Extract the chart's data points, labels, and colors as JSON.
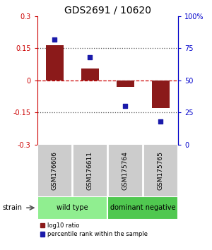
{
  "title": "GDS2691 / 10620",
  "samples": [
    "GSM176606",
    "GSM176611",
    "GSM175764",
    "GSM175765"
  ],
  "log10_ratio": [
    0.165,
    0.055,
    -0.03,
    -0.13
  ],
  "percentile_rank": [
    82,
    68,
    30,
    18
  ],
  "groups": [
    {
      "label": "wild type",
      "samples": [
        0,
        1
      ],
      "color": "#90ee90"
    },
    {
      "label": "dominant negative",
      "samples": [
        2,
        3
      ],
      "color": "#50c850"
    }
  ],
  "strain_label": "strain",
  "ylim_left": [
    -0.3,
    0.3
  ],
  "ylim_right": [
    0,
    100
  ],
  "yticks_left": [
    -0.3,
    -0.15,
    0,
    0.15,
    0.3
  ],
  "yticks_right": [
    0,
    25,
    50,
    75,
    100
  ],
  "bar_color": "#8b1a1a",
  "dot_color": "#1a1aaa",
  "hline_color": "#cc0000",
  "dotted_color": "#555555",
  "bar_width": 0.5,
  "background_color": "#ffffff",
  "label_bg": "#cccccc",
  "label_divider": "#ffffff"
}
